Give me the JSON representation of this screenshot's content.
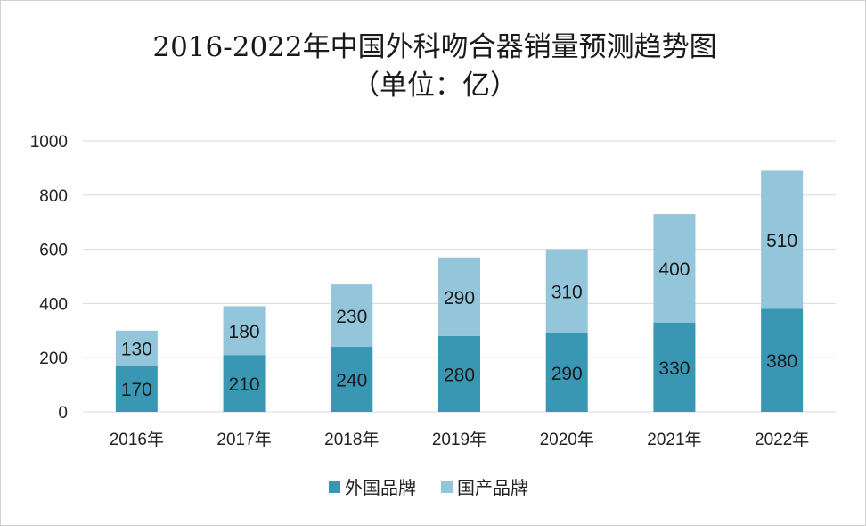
{
  "chart_data": {
    "type": "bar",
    "stacked": true,
    "title": "2016-2022年中国外科吻合器销量预测趋势图",
    "subtitle": "（单位：亿）",
    "categories": [
      "2016年",
      "2017年",
      "2018年",
      "2019年",
      "2020年",
      "2021年",
      "2022年"
    ],
    "series": [
      {
        "name": "外国品牌",
        "color": "#3a97b3",
        "values": [
          170,
          210,
          240,
          280,
          290,
          330,
          380
        ]
      },
      {
        "name": "国产品牌",
        "color": "#93c6da",
        "values": [
          130,
          180,
          230,
          290,
          310,
          400,
          510
        ]
      }
    ],
    "ylim": [
      0,
      1000
    ],
    "yticks": [
      0,
      200,
      400,
      600,
      800,
      1000
    ],
    "grid": true,
    "legend": "bottom"
  }
}
